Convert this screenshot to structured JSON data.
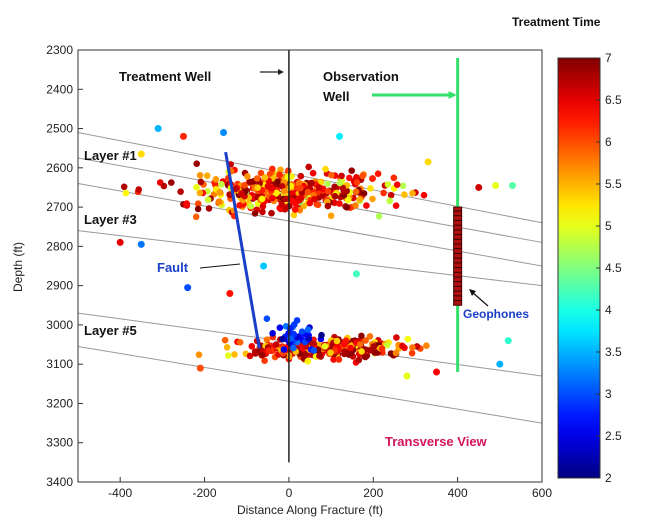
{
  "chart_data": {
    "type": "scatter",
    "title": "",
    "view_label": "Transverse View",
    "xlabel": "Distance Along Fracture (ft)",
    "ylabel": "Depth (ft)",
    "xlim": [
      -500,
      600
    ],
    "ylim": [
      2300,
      3400
    ],
    "y_inverted": true,
    "grid": false,
    "x_ticks": [
      -400,
      -200,
      0,
      200,
      400,
      600
    ],
    "y_ticks": [
      2300,
      2400,
      2500,
      2600,
      2700,
      2800,
      2900,
      3000,
      3100,
      3200,
      3300,
      3400
    ],
    "colorbar": {
      "title": "Treatment Time",
      "range": [
        2,
        7
      ],
      "ticks": [
        2,
        2.5,
        3,
        3.5,
        4,
        4.5,
        5,
        5.5,
        6,
        6.5,
        7
      ]
    },
    "layer_lines": [
      {
        "x": [
          -500,
          600
        ],
        "y": [
          2510,
          2740
        ]
      },
      {
        "x": [
          -500,
          600
        ],
        "y": [
          2575,
          2790
        ]
      },
      {
        "x": [
          -500,
          600
        ],
        "y": [
          2640,
          2850
        ]
      },
      {
        "x": [
          -500,
          600
        ],
        "y": [
          2760,
          2900
        ]
      },
      {
        "x": [
          -500,
          600
        ],
        "y": [
          2970,
          3130
        ]
      },
      {
        "x": [
          -500,
          600
        ],
        "y": [
          3055,
          3250
        ]
      }
    ],
    "layer_labels": [
      {
        "text": "Layer #1",
        "x": -480,
        "y": 2600
      },
      {
        "text": "Layer #3",
        "x": -480,
        "y": 2730
      },
      {
        "text": "Layer #5",
        "x": -480,
        "y": 3045
      }
    ],
    "treatment_well": {
      "label": "Treatment Well",
      "x": 0,
      "y_top": 2300,
      "y_bottom": 3350
    },
    "observation_well": {
      "label_line1": "Observation",
      "label_line2": "Well",
      "x": 400,
      "y_top": 2300,
      "y_bottom": 3120
    },
    "fault": {
      "label": "Fault",
      "x": [
        -150,
        -70
      ],
      "y": [
        2560,
        3060
      ]
    },
    "geophones": {
      "label": "Geophones",
      "x": 400,
      "y_top": 2700,
      "y_bottom": 2950
    },
    "clusters": [
      {
        "cx": 0,
        "cy": 2660,
        "sx": 210,
        "sy": 45,
        "n": 420,
        "tmin": 4.5,
        "tmax": 7
      },
      {
        "cx": 80,
        "cy": 3060,
        "sx": 170,
        "sy": 25,
        "n": 300,
        "tmin": 4.8,
        "tmax": 7
      },
      {
        "cx": 20,
        "cy": 3030,
        "sx": 50,
        "sy": 40,
        "n": 40,
        "tmin": 2,
        "tmax": 3.2
      }
    ],
    "scattered_points": [
      {
        "x": -310,
        "y": 2500,
        "t": 3.5
      },
      {
        "x": -155,
        "y": 2510,
        "t": 3.3
      },
      {
        "x": 120,
        "y": 2520,
        "t": 3.8
      },
      {
        "x": -400,
        "y": 2790,
        "t": 6.5
      },
      {
        "x": -350,
        "y": 2795,
        "t": 3.2
      },
      {
        "x": -240,
        "y": 2905,
        "t": 3.0
      },
      {
        "x": -140,
        "y": 2920,
        "t": 6.3
      },
      {
        "x": -60,
        "y": 2850,
        "t": 3.6
      },
      {
        "x": 160,
        "y": 2870,
        "t": 4.2
      },
      {
        "x": 330,
        "y": 2585,
        "t": 5.3
      },
      {
        "x": 450,
        "y": 2650,
        "t": 6.6
      },
      {
        "x": 490,
        "y": 2645,
        "t": 5.0
      },
      {
        "x": 530,
        "y": 2645,
        "t": 4.3
      },
      {
        "x": 500,
        "y": 3100,
        "t": 3.5
      },
      {
        "x": 520,
        "y": 3040,
        "t": 4.1
      },
      {
        "x": 280,
        "y": 3130,
        "t": 5.0
      },
      {
        "x": 350,
        "y": 3120,
        "t": 6.4
      },
      {
        "x": -210,
        "y": 3110,
        "t": 6.0
      },
      {
        "x": -350,
        "y": 2565,
        "t": 5.3
      },
      {
        "x": -250,
        "y": 2520,
        "t": 6.2
      }
    ]
  }
}
